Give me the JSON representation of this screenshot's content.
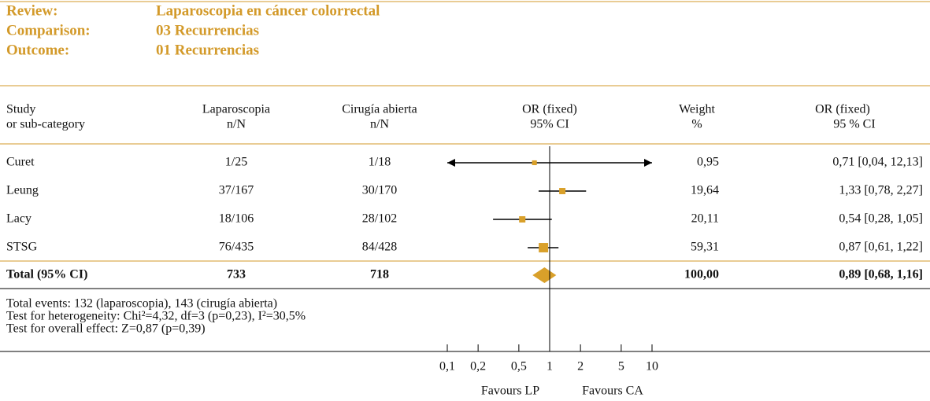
{
  "header": {
    "rows": [
      [
        "Review:",
        "Laparoscopia en cáncer colorrectal"
      ],
      [
        "Comparison:",
        "03 Recurrencias"
      ],
      [
        "Outcome:",
        "01 Recurrencias"
      ]
    ]
  },
  "chart_data": {
    "type": "forest",
    "columns": [
      [
        "Study",
        "or sub-category"
      ],
      [
        "Laparoscopia",
        "n/N"
      ],
      [
        "Cirugía abierta",
        "n/N"
      ],
      [
        "OR (fixed)",
        "95% CI"
      ],
      [
        "Weight",
        "%"
      ],
      [
        "OR (fixed)",
        "95 % CI"
      ]
    ],
    "studies": [
      {
        "name": "Curet",
        "lap": "1/25",
        "open": "1/18",
        "or": 0.71,
        "lo": 0.04,
        "hi": 12.13,
        "weight": 0.95,
        "weight_label": "0,95",
        "ci_label": "0,71 [0,04, 12,13]"
      },
      {
        "name": "Leung",
        "lap": "37/167",
        "open": "30/170",
        "or": 1.33,
        "lo": 0.78,
        "hi": 2.27,
        "weight": 19.64,
        "weight_label": "19,64",
        "ci_label": "1,33 [0,78, 2,27]"
      },
      {
        "name": "Lacy",
        "lap": "18/106",
        "open": "28/102",
        "or": 0.54,
        "lo": 0.28,
        "hi": 1.05,
        "weight": 20.11,
        "weight_label": "20,11",
        "ci_label": "0,54 [0,28, 1,05]"
      },
      {
        "name": "STSG",
        "lap": "76/435",
        "open": "84/428",
        "or": 0.87,
        "lo": 0.61,
        "hi": 1.22,
        "weight": 59.31,
        "weight_label": "59,31",
        "ci_label": "0,87 [0,61, 1,22]"
      }
    ],
    "total": {
      "name": "Total (95% CI)",
      "lap": 733,
      "open": 718,
      "or": 0.89,
      "lo": 0.68,
      "hi": 1.16,
      "weight": 100,
      "weight_label": "100,00",
      "ci_label": "0,89 [0,68, 1,16]"
    },
    "notes": [
      "Total events: 132 (laparoscopia), 143 (cirugía abierta)",
      "Test for heterogeneity: Chi²=4,32, df=3 (p=0,23), I²=30,5%",
      "Test for overall effect: Z=0,87 (p=0,39)"
    ],
    "xscale": "log",
    "xlim": [
      0.1,
      10
    ],
    "xticks": [
      {
        "value": 0.1,
        "label": "0,1"
      },
      {
        "value": 0.2,
        "label": "0,2"
      },
      {
        "value": 0.5,
        "label": "0,5"
      },
      1,
      2,
      5,
      10
    ],
    "xlabels": [
      "Favours LP",
      "Favours CA"
    ],
    "color": "#d9a02a"
  }
}
